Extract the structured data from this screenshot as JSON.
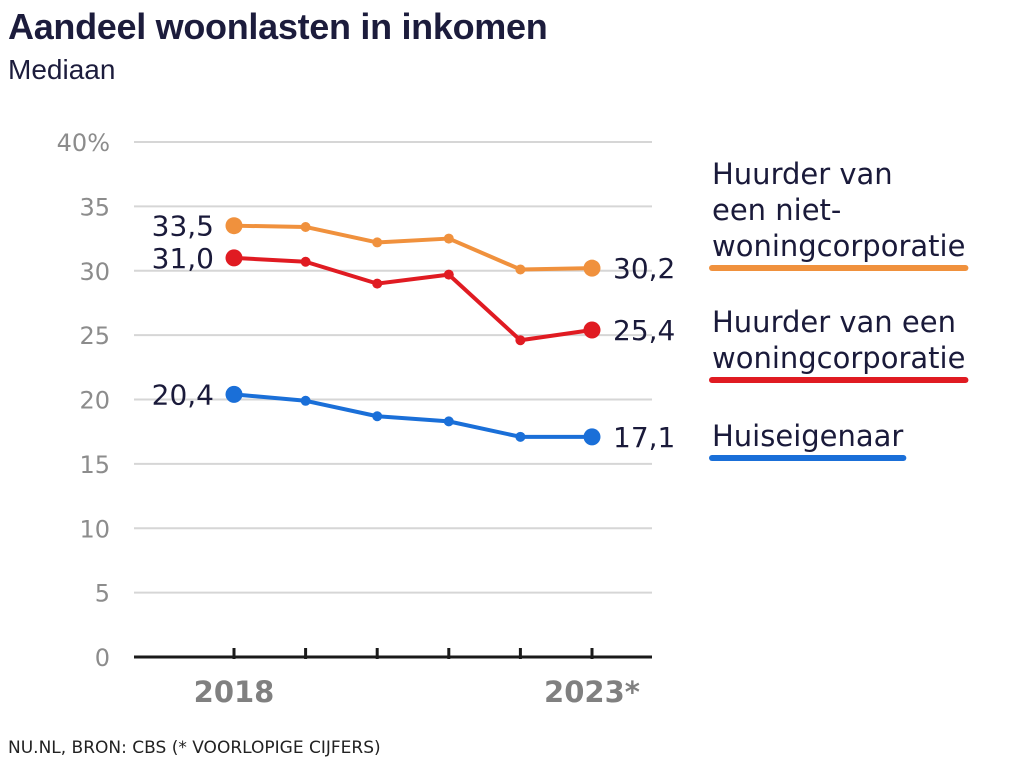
{
  "title": "Aandeel woonlasten in inkomen",
  "subtitle": "Mediaan",
  "source": "NU.NL, BRON: CBS (* VOORLOPIGE CIJFERS)",
  "chart_data": {
    "type": "line",
    "title": "Aandeel woonlasten in inkomen",
    "subtitle": "Mediaan",
    "x": [
      2018,
      2019,
      2020,
      2021,
      2022,
      2023
    ],
    "x_tick_labels": [
      "2018",
      "",
      "",
      "",
      "",
      "2023*"
    ],
    "ylim": [
      0,
      40
    ],
    "y_ticks": [
      0,
      5,
      10,
      15,
      20,
      25,
      30,
      35,
      40
    ],
    "y_tick_labels": [
      "0",
      "5",
      "10",
      "15",
      "20",
      "25",
      "30",
      "35",
      "40%"
    ],
    "grid": "horizontal",
    "legend_position": "right",
    "series": [
      {
        "name": "Huurder van een niet-woningcorporatie",
        "legend_lines": [
          "Huurder van",
          "een niet-",
          "woningcorporatie"
        ],
        "color": "#f0913d",
        "values": [
          33.5,
          33.4,
          32.2,
          32.5,
          30.1,
          30.2
        ],
        "start_label": "33,5",
        "end_label": "30,2"
      },
      {
        "name": "Huurder van een woningcorporatie",
        "legend_lines": [
          "Huurder van een",
          "woningcorporatie"
        ],
        "color": "#e01b22",
        "values": [
          31.0,
          30.7,
          29.0,
          29.7,
          24.6,
          25.4
        ],
        "start_label": "31,0",
        "end_label": "25,4"
      },
      {
        "name": "Huiseigenaar",
        "legend_lines": [
          "Huiseigenaar"
        ],
        "color": "#1a6fd8",
        "values": [
          20.4,
          19.9,
          18.7,
          18.3,
          17.1,
          17.1
        ],
        "start_label": "20,4",
        "end_label": "17,1"
      }
    ]
  }
}
